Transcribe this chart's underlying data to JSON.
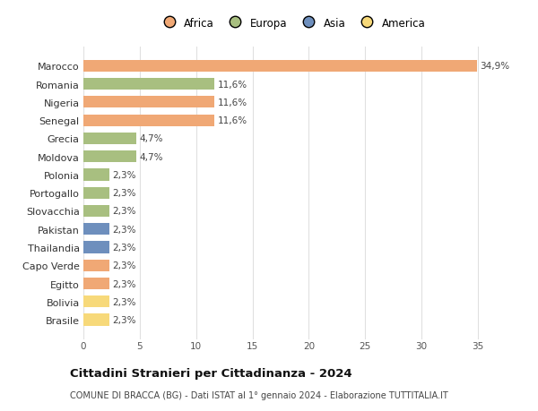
{
  "categories": [
    "Brasile",
    "Bolivia",
    "Egitto",
    "Capo Verde",
    "Thailandia",
    "Pakistan",
    "Slovacchia",
    "Portogallo",
    "Polonia",
    "Moldova",
    "Grecia",
    "Senegal",
    "Nigeria",
    "Romania",
    "Marocco"
  ],
  "values": [
    2.3,
    2.3,
    2.3,
    2.3,
    2.3,
    2.3,
    2.3,
    2.3,
    2.3,
    4.7,
    4.7,
    11.6,
    11.6,
    11.6,
    34.9
  ],
  "colors": [
    "#F7D97A",
    "#F7D97A",
    "#F0A875",
    "#F0A875",
    "#6E8FBD",
    "#6E8FBD",
    "#A8BF80",
    "#A8BF80",
    "#A8BF80",
    "#A8BF80",
    "#A8BF80",
    "#F0A875",
    "#F0A875",
    "#A8BF80",
    "#F0A875"
  ],
  "labels": [
    "2,3%",
    "2,3%",
    "2,3%",
    "2,3%",
    "2,3%",
    "2,3%",
    "2,3%",
    "2,3%",
    "2,3%",
    "4,7%",
    "4,7%",
    "11,6%",
    "11,6%",
    "11,6%",
    "34,9%"
  ],
  "legend": [
    {
      "label": "Africa",
      "color": "#F0A875"
    },
    {
      "label": "Europa",
      "color": "#A8BF80"
    },
    {
      "label": "Asia",
      "color": "#6E8FBD"
    },
    {
      "label": "America",
      "color": "#F7D97A"
    }
  ],
  "title": "Cittadini Stranieri per Cittadinanza - 2024",
  "subtitle": "COMUNE DI BRACCA (BG) - Dati ISTAT al 1° gennaio 2024 - Elaborazione TUTTITALIA.IT",
  "xlim": [
    0,
    37
  ],
  "xticks": [
    0,
    5,
    10,
    15,
    20,
    25,
    30,
    35
  ],
  "background_color": "#ffffff",
  "grid_color": "#e0e0e0"
}
